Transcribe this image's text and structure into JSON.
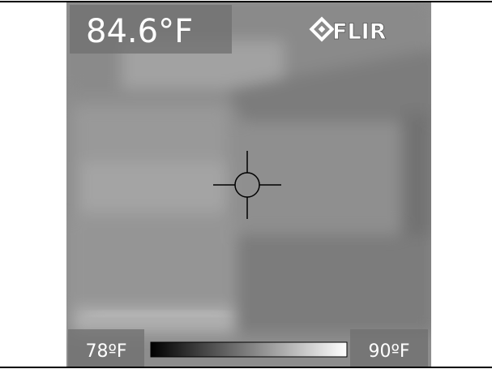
{
  "reading": "84.6°F",
  "brand": "FLIR",
  "scale": {
    "min_label": "78ºF",
    "max_label": "90ºF"
  }
}
